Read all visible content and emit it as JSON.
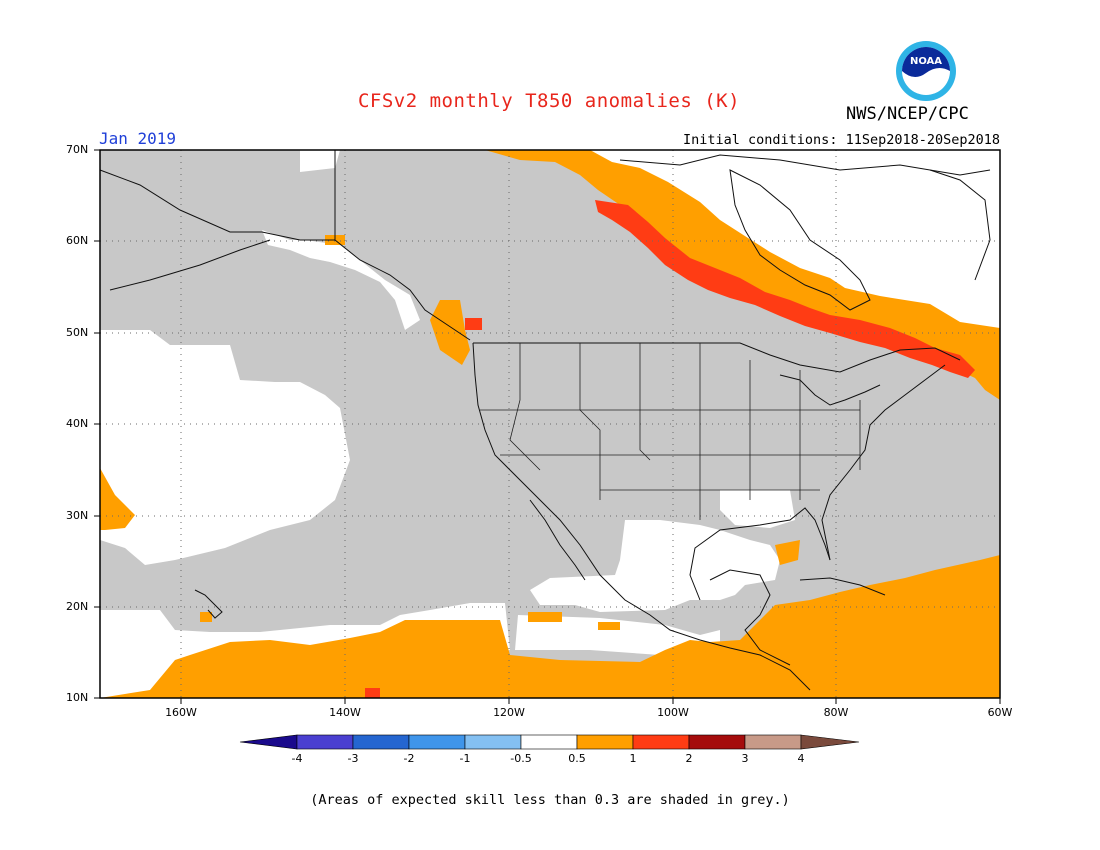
{
  "header": {
    "title": "CFSv2 monthly T850 anomalies (K)",
    "agency": "NWS/NCEP/CPC",
    "period": "Jan 2019",
    "initial_conditions": "Initial conditions: 11Sep2018-20Sep2018",
    "logo_text": "NOAA"
  },
  "map": {
    "lat_labels": [
      "70N",
      "60N",
      "50N",
      "40N",
      "30N",
      "20N",
      "10N"
    ],
    "lon_labels": [
      "160W",
      "140W",
      "120W",
      "100W",
      "80W",
      "60W"
    ],
    "extent": {
      "lon": [
        -172,
        -60
      ],
      "lat": [
        10,
        70
      ]
    },
    "grid_lines": true
  },
  "colorbar": {
    "labels": [
      "-4",
      "-3",
      "-2",
      "-1",
      "-0.5",
      "0.5",
      "1",
      "2",
      "3",
      "4"
    ],
    "colors": [
      "#1a0a8c",
      "#4a3fd0",
      "#2566d0",
      "#3f95ea",
      "#84c0f2",
      "#ffffff",
      "#ff9f00",
      "#ff3c14",
      "#a50c0c",
      "#c89a88",
      "#7a4a3c"
    ]
  },
  "colors": {
    "grey_low_skill": "#c8c8c8",
    "orange_0_5_to_1": "#ff9f00",
    "red_1_to_2": "#ff3c14",
    "white_neutral": "#ffffff"
  },
  "footnote": "(Areas of expected skill less than 0.3 are shaded in grey.)"
}
